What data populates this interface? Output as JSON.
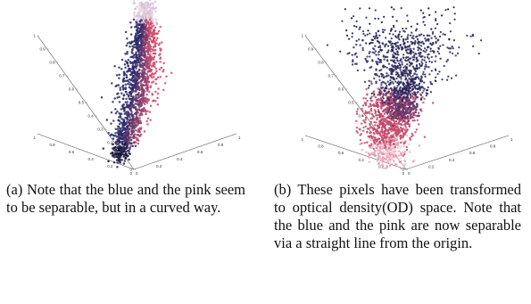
{
  "figure": {
    "panels": [
      {
        "id": "a",
        "caption": "(a) Note that the blue and the pink seem to be separable, but in a curved way."
      },
      {
        "id": "b",
        "caption": "(b) These pixels have been transformed to optical density(OD) space. Note that the blue and the pink are now separable via a straight line from the origin."
      }
    ]
  },
  "chart_data": [
    {
      "type": "scatter",
      "subtype": "3d",
      "title": "",
      "series": [
        {
          "color": "#2a2a6a",
          "region": "lower-left tail, curving upward"
        },
        {
          "color": "#d04a6a",
          "region": "upper-right bulge"
        }
      ],
      "z_ticks": [
        "0",
        "0.1",
        "0.2",
        "0.3",
        "0.4",
        "0.5",
        "0.6",
        "0.7",
        "0.8",
        "0.9",
        "1"
      ],
      "x_ticks": [
        "0",
        "0.2",
        "0.4",
        "0.6",
        "0.8",
        "1"
      ],
      "y_ticks": [
        "0",
        "0.2",
        "0.4",
        "0.6",
        "0.8",
        "1"
      ],
      "grid": false
    },
    {
      "type": "scatter",
      "subtype": "3d",
      "title": "",
      "series": [
        {
          "color": "#2a2a6a",
          "region": "upper fan, scattered"
        },
        {
          "color": "#d04a6a",
          "region": "lower dense core toward origin"
        }
      ],
      "z_ticks": [
        "0",
        "0.1",
        "0.2",
        "0.3",
        "0.4",
        "0.5",
        "0.6",
        "0.7",
        "0.8",
        "0.9",
        "1"
      ],
      "x_ticks": [
        "0",
        "0.2",
        "0.4",
        "0.6",
        "0.8",
        "1"
      ],
      "y_ticks": [
        "0",
        "0.2",
        "0.4",
        "0.6",
        "0.8",
        "1"
      ],
      "grid": false
    }
  ]
}
